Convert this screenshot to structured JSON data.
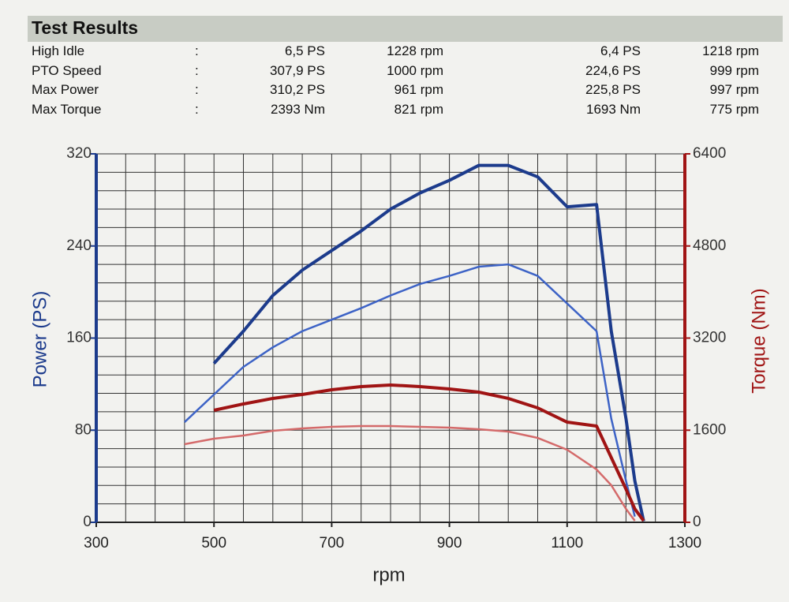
{
  "header": {
    "title": "Test Results"
  },
  "table": {
    "rows": [
      [
        "High Idle",
        ":",
        "6,5 PS",
        "1228 rpm",
        "6,4 PS",
        "1218 rpm"
      ],
      [
        "PTO Speed",
        ":",
        "307,9 PS",
        "1000 rpm",
        "224,6 PS",
        "999 rpm"
      ],
      [
        "Max Power",
        ":",
        "310,2 PS",
        "961 rpm",
        "225,8 PS",
        "997 rpm"
      ],
      [
        "Max Torque",
        ":",
        "2393 Nm",
        "821 rpm",
        "1693 Nm",
        "775 rpm"
      ]
    ]
  },
  "chart_data": {
    "type": "line",
    "x_label": "rpm",
    "y_label": "Power (PS)",
    "y2_label": "Torque (Nm)",
    "x": [
      450,
      500,
      550,
      600,
      650,
      700,
      750,
      800,
      850,
      900,
      950,
      1000,
      1050,
      1100,
      1150,
      1175,
      1200,
      1215,
      1230
    ],
    "series": [
      {
        "color": "#1c3b8c",
        "width": 4,
        "values": [
          null,
          138,
          166,
          197,
          219,
          236,
          253,
          272,
          286,
          297,
          310,
          310,
          300,
          274,
          276,
          166,
          90,
          36,
          1
        ]
      },
      {
        "color": "#3d63c6",
        "width": 2.5,
        "values": [
          87,
          111,
          135,
          152,
          166,
          176,
          186,
          197,
          207,
          214,
          222,
          224,
          214,
          190,
          166,
          90,
          36,
          5,
          null
        ]
      },
      {
        "color": "#a01414",
        "width": 4,
        "axis": "y2",
        "values": [
          null,
          1946,
          2056,
          2152,
          2220,
          2302,
          2357,
          2385,
          2357,
          2316,
          2261,
          2152,
          1987,
          1740,
          1672,
          1124,
          576,
          233,
          27
        ]
      },
      {
        "color": "#d46a6a",
        "width": 2.5,
        "axis": "y2",
        "values": [
          1357,
          1453,
          1507,
          1590,
          1631,
          1658,
          1672,
          1672,
          1658,
          1645,
          1617,
          1576,
          1466,
          1261,
          918,
          644,
          233,
          27,
          null
        ]
      }
    ],
    "xlim": [
      300,
      1300
    ],
    "xticks": [
      300,
      500,
      700,
      900,
      1100,
      1300
    ],
    "ylim": [
      0,
      320
    ],
    "yticks": [
      0,
      80,
      160,
      240,
      320
    ],
    "y2lim": [
      0,
      6400
    ],
    "y2ticks": [
      0,
      1600,
      3200,
      4800,
      6400
    ],
    "xgrid": [
      350,
      400,
      450,
      500,
      550,
      600,
      650,
      700,
      750,
      800,
      850,
      900,
      950,
      1000,
      1050,
      1100,
      1150,
      1200,
      1250
    ],
    "ygrid": [
      16,
      32,
      48,
      64,
      80,
      96,
      112,
      128,
      144,
      160,
      176,
      192,
      208,
      224,
      240,
      256,
      272,
      288,
      304,
      320
    ],
    "ycolor": "#1c3b8c",
    "y2color": "#a01414"
  }
}
